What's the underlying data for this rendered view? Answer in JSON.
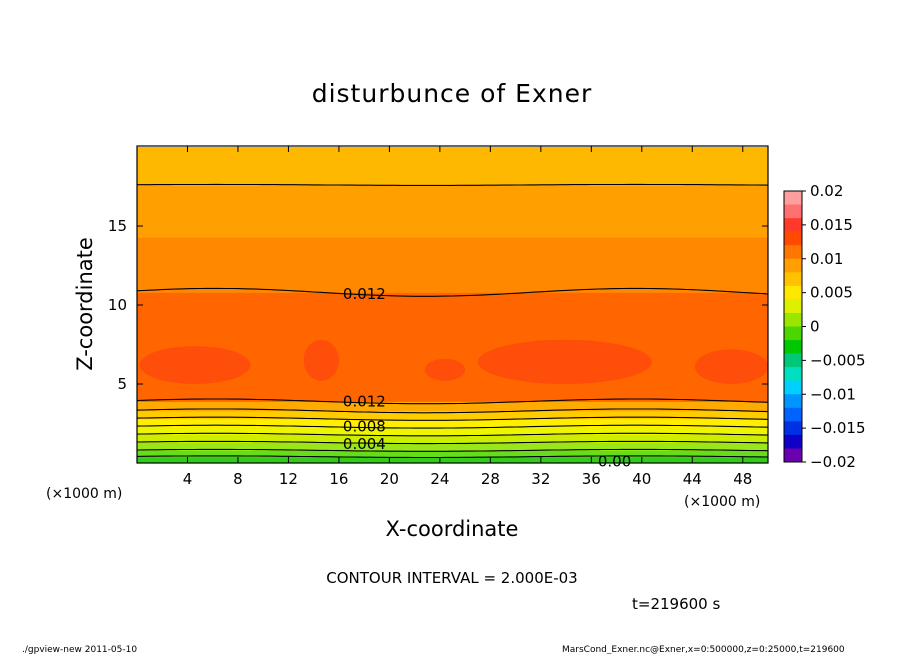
{
  "chart_data": {
    "type": "contour",
    "title": "disturbunce of Exner",
    "xlabel": "X-coordinate",
    "ylabel": "Z-coordinate",
    "x_unit_left": "(×1000 m)",
    "x_unit_right": "(×1000 m)",
    "xlim": [
      0,
      50
    ],
    "ylim": [
      0,
      25
    ],
    "x_ticks": [
      4,
      8,
      12,
      16,
      20,
      24,
      28,
      32,
      36,
      40,
      44,
      48
    ],
    "y_ticks": [
      5,
      10,
      15
    ],
    "contour_interval_text": "CONTOUR INTERVAL = 2.000E-03",
    "time_text": "t=219600 s",
    "contour_labels": [
      {
        "text": "0.012",
        "x": 16.0,
        "z": 10.7
      },
      {
        "text": "0.012",
        "x": 16.0,
        "z": 3.9
      },
      {
        "text": "0.008",
        "x": 16.0,
        "z": 2.3
      },
      {
        "text": "0.004",
        "x": 16.0,
        "z": 1.2
      },
      {
        "text": "0.00",
        "x": 36.2,
        "z": 0.1
      }
    ],
    "bands": [
      {
        "z0": 0.0,
        "z1": 0.4,
        "color": "#33cc1a"
      },
      {
        "z0": 0.4,
        "z1": 0.8,
        "color": "#66dd1a"
      },
      {
        "z0": 0.8,
        "z1": 1.3,
        "color": "#99e619"
      },
      {
        "z0": 1.3,
        "z1": 1.8,
        "color": "#ccee00"
      },
      {
        "z0": 1.8,
        "z1": 2.3,
        "color": "#eef500"
      },
      {
        "z0": 2.3,
        "z1": 2.8,
        "color": "#ffee00"
      },
      {
        "z0": 2.8,
        "z1": 3.3,
        "color": "#ffcc00"
      },
      {
        "z0": 3.3,
        "z1": 3.9,
        "color": "#ffaa00"
      },
      {
        "z0": 3.9,
        "z1": 10.8,
        "color": "#ff6600"
      },
      {
        "z0": 10.8,
        "z1": 14.3,
        "color": "#ff8800"
      },
      {
        "z0": 14.3,
        "z1": 17.6,
        "color": "#ffa000"
      },
      {
        "z0": 17.6,
        "z1": 20.0,
        "color": "#ffb800"
      }
    ],
    "high_blobs": [
      {
        "x0": 0.2,
        "x1": 9.0,
        "z0": 5.0,
        "z1": 7.4
      },
      {
        "x0": 13.2,
        "x1": 16.0,
        "z0": 5.2,
        "z1": 7.8
      },
      {
        "x0": 22.8,
        "x1": 26.0,
        "z0": 5.2,
        "z1": 6.6
      },
      {
        "x0": 27.0,
        "x1": 40.8,
        "z0": 5.0,
        "z1": 7.8
      },
      {
        "x0": 44.2,
        "x1": 50.0,
        "z0": 5.0,
        "z1": 7.2
      }
    ],
    "contour_lines": [
      {
        "z": 0.4,
        "amp": 0.05
      },
      {
        "z": 0.8,
        "amp": 0.06
      },
      {
        "z": 1.3,
        "amp": 0.07
      },
      {
        "z": 1.8,
        "amp": 0.08
      },
      {
        "z": 2.3,
        "amp": 0.09
      },
      {
        "z": 2.8,
        "amp": 0.1
      },
      {
        "z": 3.3,
        "amp": 0.12
      },
      {
        "z": 3.9,
        "amp": 0.15
      },
      {
        "z": 10.8,
        "amp": 0.25
      },
      {
        "z": 17.6,
        "amp": 0.03
      }
    ],
    "colorbar": {
      "ticks": [
        "0.02",
        "0.015",
        "0.01",
        "0.005",
        "0",
        "−0.005",
        "−0.01",
        "−0.015",
        "−0.02"
      ],
      "colors_top_to_bottom": [
        "#ff9e9e",
        "#ff7070",
        "#ff3a2a",
        "#ff4a00",
        "#ff7700",
        "#ff9f00",
        "#ffc100",
        "#ffe800",
        "#ddf000",
        "#9ae600",
        "#4cd600",
        "#00c800",
        "#00c878",
        "#00e0c0",
        "#00d0ff",
        "#0096ff",
        "#0062ff",
        "#0030e6",
        "#1000c8",
        "#6a00b0"
      ]
    }
  },
  "footer": {
    "left": "./gpview-new  2011-05-10",
    "right": "MarsCond_Exner.nc@Exner,x=0:500000,z=0:25000,t=219600"
  }
}
